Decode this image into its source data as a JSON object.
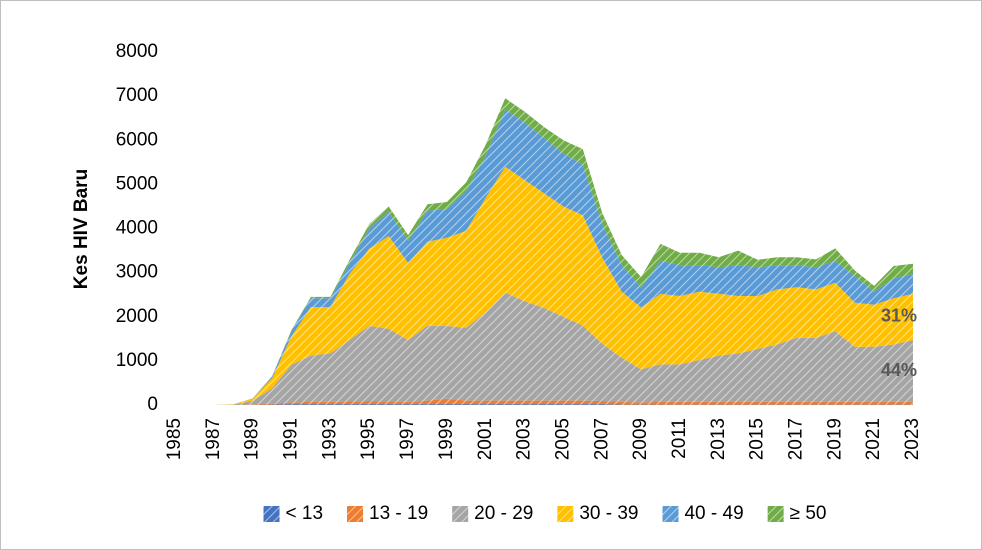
{
  "chart_data": {
    "type": "stacked_area",
    "y_label": "Kes HIV Baru",
    "x": [
      1985,
      1986,
      1987,
      1988,
      1989,
      1990,
      1991,
      1992,
      1993,
      1994,
      1995,
      1996,
      1997,
      1998,
      1999,
      2000,
      2001,
      2002,
      2003,
      2004,
      2005,
      2006,
      2007,
      2008,
      2009,
      2010,
      2011,
      2012,
      2013,
      2014,
      2015,
      2016,
      2017,
      2018,
      2019,
      2020,
      2021,
      2022,
      2023
    ],
    "xlim": [
      1985,
      2023
    ],
    "xticks": [
      1985,
      1987,
      1989,
      1991,
      1993,
      1995,
      1997,
      1999,
      2001,
      2003,
      2005,
      2007,
      2009,
      2011,
      2013,
      2015,
      2017,
      2019,
      2021,
      2023
    ],
    "ylim": [
      0,
      8000
    ],
    "yticks": [
      0,
      1000,
      2000,
      3000,
      4000,
      5000,
      6000,
      7000,
      8000
    ],
    "legend": "bottom",
    "series": [
      {
        "name": "< 13",
        "color": "#4472c4",
        "values": [
          0,
          0,
          0,
          0,
          5,
          10,
          20,
          20,
          20,
          20,
          20,
          20,
          20,
          20,
          20,
          20,
          20,
          20,
          20,
          20,
          20,
          20,
          20,
          10,
          10,
          10,
          10,
          10,
          10,
          10,
          10,
          10,
          10,
          10,
          10,
          10,
          10,
          10,
          10
        ]
      },
      {
        "name": "13 - 19",
        "color": "#ed7d31",
        "values": [
          0,
          0,
          0,
          0,
          10,
          20,
          40,
          50,
          50,
          60,
          70,
          60,
          50,
          80,
          120,
          80,
          80,
          80,
          80,
          80,
          80,
          80,
          70,
          60,
          50,
          60,
          60,
          60,
          60,
          60,
          60,
          60,
          60,
          60,
          60,
          60,
          60,
          60,
          60
        ]
      },
      {
        "name": "20 - 29",
        "color": "#a5a5a5",
        "values": [
          0,
          0,
          0,
          10,
          80,
          350,
          850,
          1050,
          1100,
          1400,
          1700,
          1650,
          1400,
          1700,
          1650,
          1650,
          2000,
          2450,
          2250,
          2100,
          1900,
          1700,
          1300,
          1000,
          750,
          850,
          850,
          950,
          1050,
          1100,
          1200,
          1300,
          1450,
          1450,
          1600,
          1250,
          1250,
          1300,
          1400
        ]
      },
      {
        "name": "30 - 39",
        "color": "#ffc000",
        "values": [
          0,
          0,
          0,
          5,
          50,
          230,
          650,
          1100,
          1050,
          1500,
          1750,
          2100,
          1750,
          1900,
          2000,
          2200,
          2600,
          2850,
          2750,
          2600,
          2500,
          2500,
          1950,
          1500,
          1400,
          1600,
          1550,
          1550,
          1400,
          1300,
          1200,
          1250,
          1150,
          1100,
          1100,
          1000,
          950,
          1050,
          1050
        ]
      },
      {
        "name": "40 - 49",
        "color": "#5b9bd5",
        "values": [
          0,
          0,
          0,
          0,
          5,
          40,
          120,
          200,
          200,
          250,
          450,
          550,
          500,
          700,
          650,
          900,
          950,
          1300,
          1300,
          1250,
          1200,
          1150,
          750,
          600,
          450,
          750,
          700,
          600,
          600,
          700,
          650,
          550,
          500,
          500,
          500,
          600,
          300,
          450,
          450
        ]
      },
      {
        "name": "≥ 50",
        "color": "#70ad47",
        "values": [
          0,
          0,
          0,
          0,
          0,
          0,
          20,
          30,
          30,
          70,
          110,
          120,
          130,
          150,
          160,
          200,
          250,
          250,
          250,
          250,
          300,
          350,
          260,
          230,
          240,
          380,
          280,
          280,
          230,
          330,
          170,
          180,
          180,
          180,
          280,
          130,
          130,
          280,
          230
        ]
      }
    ],
    "annotations": [
      "31%",
      "44%"
    ]
  }
}
